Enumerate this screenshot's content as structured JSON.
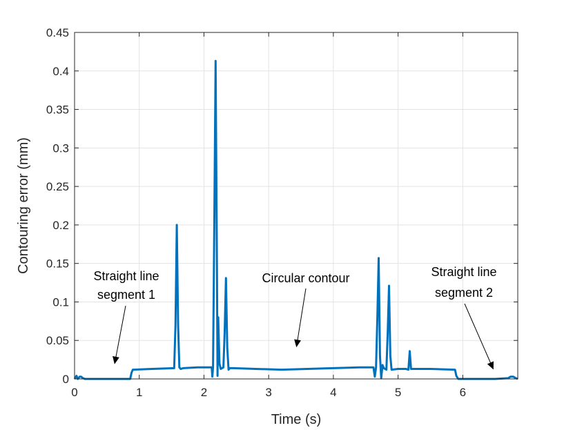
{
  "chart_data": {
    "type": "line",
    "title": "",
    "xlabel": "Time (s)",
    "ylabel": "Contouring error (mm)",
    "xlim": [
      0,
      6.85
    ],
    "ylim": [
      0,
      0.45
    ],
    "x_ticks": [
      0,
      1,
      2,
      3,
      4,
      5,
      6
    ],
    "y_ticks": [
      0,
      0.05,
      0.1,
      0.15,
      0.2,
      0.25,
      0.3,
      0.35,
      0.4,
      0.45
    ],
    "x_tick_labels": [
      "0",
      "1",
      "2",
      "3",
      "4",
      "5",
      "6"
    ],
    "y_tick_labels": [
      "0",
      "0.05",
      "0.1",
      "0.15",
      "0.2",
      "0.25",
      "0.3",
      "0.35",
      "0.4",
      "0.45"
    ],
    "grid": true,
    "line_color": "#0072BD",
    "series": [
      {
        "x": [
          0,
          0.03,
          0.05,
          0.08,
          0.1,
          0.13,
          0.16,
          0.2,
          0.5,
          0.86,
          0.88,
          0.9,
          1.2,
          1.54,
          1.56,
          1.58,
          1.6,
          1.62,
          1.64,
          1.68,
          1.9,
          2.12,
          2.13,
          2.14,
          2.16,
          2.18,
          2.2,
          2.21,
          2.22,
          2.24,
          2.26,
          2.3,
          2.32,
          2.34,
          2.36,
          2.38,
          2.4,
          2.45,
          2.8,
          3.2,
          3.6,
          4.0,
          4.4,
          4.62,
          4.64,
          4.66,
          4.68,
          4.7,
          4.72,
          4.74,
          4.76,
          4.78,
          4.82,
          4.84,
          4.86,
          4.88,
          4.9,
          5.0,
          5.12,
          5.16,
          5.18,
          5.2,
          5.22,
          5.5,
          5.88,
          5.9,
          5.93,
          6.2,
          6.5,
          6.7,
          6.74,
          6.78,
          6.82,
          6.85
        ],
        "y": [
          0,
          0.004,
          0,
          0.003,
          0.003,
          0.001,
          0,
          0,
          0,
          0,
          0.008,
          0.012,
          0.013,
          0.014,
          0.07,
          0.2,
          0.07,
          0.015,
          0.013,
          0.014,
          0.015,
          0.015,
          0.003,
          0.015,
          0.2,
          0.413,
          0.15,
          0.004,
          0.08,
          0.02,
          0.013,
          0.015,
          0.06,
          0.131,
          0.04,
          0.012,
          0.014,
          0.014,
          0.013,
          0.012,
          0.013,
          0.014,
          0.015,
          0.015,
          0.003,
          0.015,
          0.08,
          0.157,
          0.03,
          0.001,
          0.018,
          0.014,
          0.012,
          0.06,
          0.121,
          0.03,
          0.012,
          0.013,
          0.013,
          0.012,
          0.036,
          0.013,
          0.013,
          0.013,
          0.012,
          0.004,
          0,
          0,
          0,
          0.001,
          0.003,
          0.003,
          0.001,
          0
        ]
      }
    ],
    "annotations": [
      {
        "lines": [
          "Straight line",
          "segment 1"
        ],
        "arrow_to": [
          0.62,
          0.02
        ]
      },
      {
        "lines": [
          "Circular contour"
        ],
        "arrow_to": [
          3.43,
          0.042
        ]
      },
      {
        "lines": [
          "Straight line",
          "segment 2"
        ],
        "arrow_to": [
          6.47,
          0.013
        ]
      }
    ]
  }
}
